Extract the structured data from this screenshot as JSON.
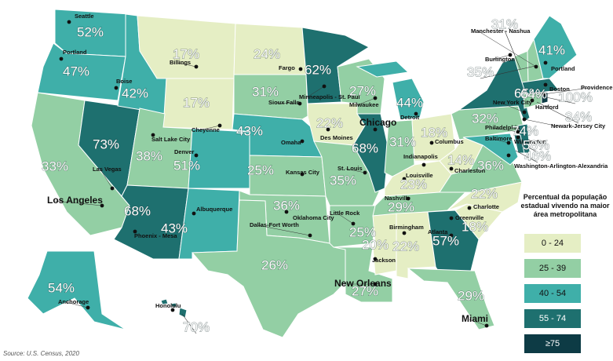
{
  "states": [
    {
      "value": 52,
      "value_label": "52%"
    },
    {
      "value": 47,
      "value_label": "47%"
    },
    {
      "value": 33,
      "value_label": "33%"
    },
    {
      "value": 73,
      "value_label": "73%"
    },
    {
      "value": 42,
      "value_label": "42%"
    },
    {
      "value": 17,
      "value_label": "17%"
    },
    {
      "value": 17,
      "value_label": "17%"
    },
    {
      "value": 38,
      "value_label": "38%"
    },
    {
      "value": 51,
      "value_label": "51%"
    },
    {
      "value": 68,
      "value_label": "68%"
    },
    {
      "value": 43,
      "value_label": "43%"
    },
    {
      "value": 24,
      "value_label": "24%"
    },
    {
      "value": 31,
      "value_label": "31%"
    },
    {
      "value": 43,
      "value_label": "43%"
    },
    {
      "value": 25,
      "value_label": "25%"
    },
    {
      "value": 36,
      "value_label": "36%"
    },
    {
      "value": 26,
      "value_label": "26%"
    },
    {
      "value": 62,
      "value_label": "62%"
    },
    {
      "value": 22,
      "value_label": "22%"
    },
    {
      "value": 35,
      "value_label": "35%"
    },
    {
      "value": 25,
      "value_label": "25%"
    },
    {
      "value": 27,
      "value_label": "27%"
    },
    {
      "value": 27,
      "value_label": "27%"
    },
    {
      "value": 68,
      "value_label": "68%"
    },
    {
      "value": 44,
      "value_label": "44%"
    },
    {
      "value": 31,
      "value_label": "31%"
    },
    {
      "value": 18,
      "value_label": "18%"
    },
    {
      "value": 23,
      "value_label": "23%"
    },
    {
      "value": 29,
      "value_label": "29%"
    },
    {
      "value": 20,
      "value_label": "20%"
    },
    {
      "value": 22,
      "value_label": "22%"
    },
    {
      "value": 57,
      "value_label": "57%"
    },
    {
      "value": 29,
      "value_label": "29%"
    },
    {
      "value": 18,
      "value_label": "18%"
    },
    {
      "value": 22,
      "value_label": "22%"
    },
    {
      "value": 36,
      "value_label": "36%"
    },
    {
      "value": 14,
      "value_label": "14%"
    },
    {
      "value": 32,
      "value_label": "32%"
    },
    {
      "value": 65,
      "value_label": "65%"
    },
    {
      "value": 74,
      "value_label": "74%"
    },
    {
      "value": 46,
      "value_label": "46%"
    },
    {
      "value": 58,
      "value_label": "58%"
    },
    {
      "value": 31,
      "value_label": "31%"
    },
    {
      "value": 35,
      "value_label": "35%"
    },
    {
      "value": 41,
      "value_label": "41%"
    },
    {
      "value": 64,
      "value_label": "64%"
    },
    {
      "value": 34,
      "value_label": "34%"
    },
    {
      "value": 100,
      "value_label": "100%"
    },
    {
      "value": 54,
      "value_label": "54%"
    },
    {
      "value": 70,
      "value_label": "70%"
    }
  ],
  "cities": [
    {
      "name": "Seattle"
    },
    {
      "name": "Portland"
    },
    {
      "name": "Boise"
    },
    {
      "name": "Billings"
    },
    {
      "name": "Fargo"
    },
    {
      "name": "Minneapolis - St. Paul"
    },
    {
      "name": "Sioux Falls"
    },
    {
      "name": "Milwaukee"
    },
    {
      "name": "Detroit"
    },
    {
      "name": "Chicago"
    },
    {
      "name": "Des Moines"
    },
    {
      "name": "Omaha"
    },
    {
      "name": "Cheyenne"
    },
    {
      "name": "Salt Lake City"
    },
    {
      "name": "Denver"
    },
    {
      "name": "Las Vegas"
    },
    {
      "name": "Los Angeles"
    },
    {
      "name": "Phoenix - Mesa"
    },
    {
      "name": "Albuquerque"
    },
    {
      "name": "Kansas City"
    },
    {
      "name": "St. Louis"
    },
    {
      "name": "Indianapolis"
    },
    {
      "name": "Columbus"
    },
    {
      "name": "Louisville"
    },
    {
      "name": "Charleston"
    },
    {
      "name": "Nashville"
    },
    {
      "name": "Little Rock"
    },
    {
      "name": "Oklahoma City"
    },
    {
      "name": "Dallas-Fort Worth"
    },
    {
      "name": "Birmingham"
    },
    {
      "name": "Jackson"
    },
    {
      "name": "Atlanta"
    },
    {
      "name": "Greenville"
    },
    {
      "name": "Charlotte"
    },
    {
      "name": "New Orleans"
    },
    {
      "name": "Miami"
    },
    {
      "name": "Anchorage"
    },
    {
      "name": "Honolulu"
    },
    {
      "name": "Manchester - Nashua"
    },
    {
      "name": "Burlington"
    },
    {
      "name": "Portland"
    },
    {
      "name": "Boston"
    },
    {
      "name": "Providence"
    },
    {
      "name": "Hartford"
    },
    {
      "name": "New York City"
    },
    {
      "name": "Newark-Jersey City"
    },
    {
      "name": "Philadelphia"
    },
    {
      "name": "Baltimore"
    },
    {
      "name": "Wilmington"
    },
    {
      "name": "Washington-Arlington-Alexandria"
    }
  ],
  "legend": {
    "title": "Percentual da população estadual vivendo na maior área metropolitana",
    "bins": [
      {
        "label": "0 - 24",
        "min": 0,
        "color": "#e5eec4"
      },
      {
        "label": "25 - 39",
        "min": 25,
        "color": "#93cfa4"
      },
      {
        "label": "40 - 54",
        "min": 40,
        "color": "#3fafa9"
      },
      {
        "label": "55 - 74",
        "min": 55,
        "color": "#1e706f"
      },
      {
        "label": "≥75",
        "min": 75,
        "color": "#0d3b45"
      }
    ]
  },
  "source": "Source: U.S. Census, 2020"
}
